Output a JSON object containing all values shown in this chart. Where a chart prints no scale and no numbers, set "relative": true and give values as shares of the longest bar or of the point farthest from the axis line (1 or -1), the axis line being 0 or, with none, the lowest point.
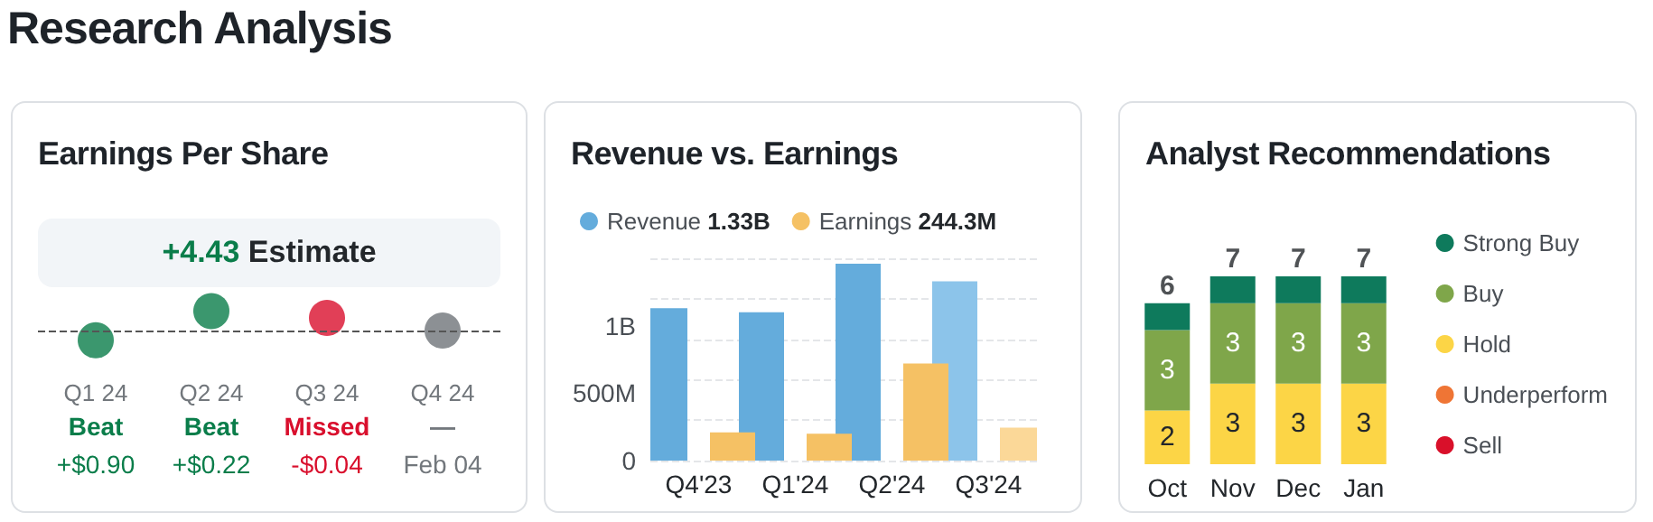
{
  "chart_data": [
    {
      "type": "scatter",
      "title": "Earnings Per Share",
      "subtitle": "+4.43 Estimate",
      "relative": true,
      "marker": "circle",
      "categories": [
        "Q1 24",
        "Q2 24",
        "Q3 24",
        "Q4 24"
      ],
      "values": [
        -0.5,
        1,
        0.65,
        0
      ],
      "colors": [
        "#0a7d4a",
        "#0a7d4a",
        "#d90f2d",
        "#6f7479"
      ],
      "annotations": [
        "Research Analysis",
        "Beat",
        "+$0.90",
        "Beat",
        "+$0.22",
        "Missed",
        "-$0.04",
        "—",
        "Feb 04"
      ],
      "ref_lines": [
        {
          "axis": "y",
          "value": 0,
          "color": "#555555",
          "line_style": "dashed"
        }
      ],
      "grid": false,
      "legend": false
    },
    {
      "type": "bar",
      "title": "Revenue vs. Earnings",
      "categories": [
        "Q4'23",
        "Q1'24",
        "Q2'24",
        "Q3'24"
      ],
      "series": [
        {
          "name": "Revenue",
          "color": "#64acdc",
          "colors": [
            "#64acdc",
            "#64acdc",
            "#64acdc",
            "#8cc4ea"
          ],
          "values": [
            1130000000,
            1100000000,
            1460000000,
            1330000000
          ]
        },
        {
          "name": "Earnings",
          "color": "#f5c164",
          "colors": [
            "#f5c164",
            "#f5c164",
            "#f5c164",
            "#fbd898"
          ],
          "values": [
            210000000,
            200000000,
            720000000,
            244300000
          ]
        }
      ],
      "annotations": [
        "1.33B",
        "244.3M"
      ],
      "ylim": [
        0,
        1500000000
      ],
      "yticks": [
        0,
        {
          "value": 500000000,
          "label": "500M"
        },
        {
          "value": 1000000000,
          "label": "1B"
        }
      ],
      "grid": "y",
      "legend": "top left"
    },
    {
      "type": "bar",
      "title": "Analyst Recommendations",
      "stacked": true,
      "categories": [
        "Oct",
        "Nov",
        "Dec",
        "Jan"
      ],
      "series": [
        {
          "name": "Sell",
          "color": "#d9102a",
          "values": [
            0,
            0,
            0,
            0
          ]
        },
        {
          "name": "Underperform",
          "color": "#ef7535",
          "values": [
            0,
            0,
            0,
            0
          ]
        },
        {
          "name": "Hold",
          "color": "#fcd546",
          "values": [
            2,
            3,
            3,
            3
          ],
          "value_labels": [
            "2",
            "3",
            "3",
            "3"
          ]
        },
        {
          "name": "Buy",
          "color": "#7fa64a",
          "values": [
            3,
            3,
            3,
            3
          ],
          "value_labels": [
            "3",
            "3",
            "3",
            "3"
          ]
        },
        {
          "name": "Strong Buy",
          "color": "#0e7a5c",
          "values": [
            1,
            1,
            1,
            1
          ]
        }
      ],
      "totals": [
        "6",
        "7",
        "7",
        "7"
      ],
      "tick_labels": "x",
      "grid": false,
      "legend": "right"
    }
  ]
}
